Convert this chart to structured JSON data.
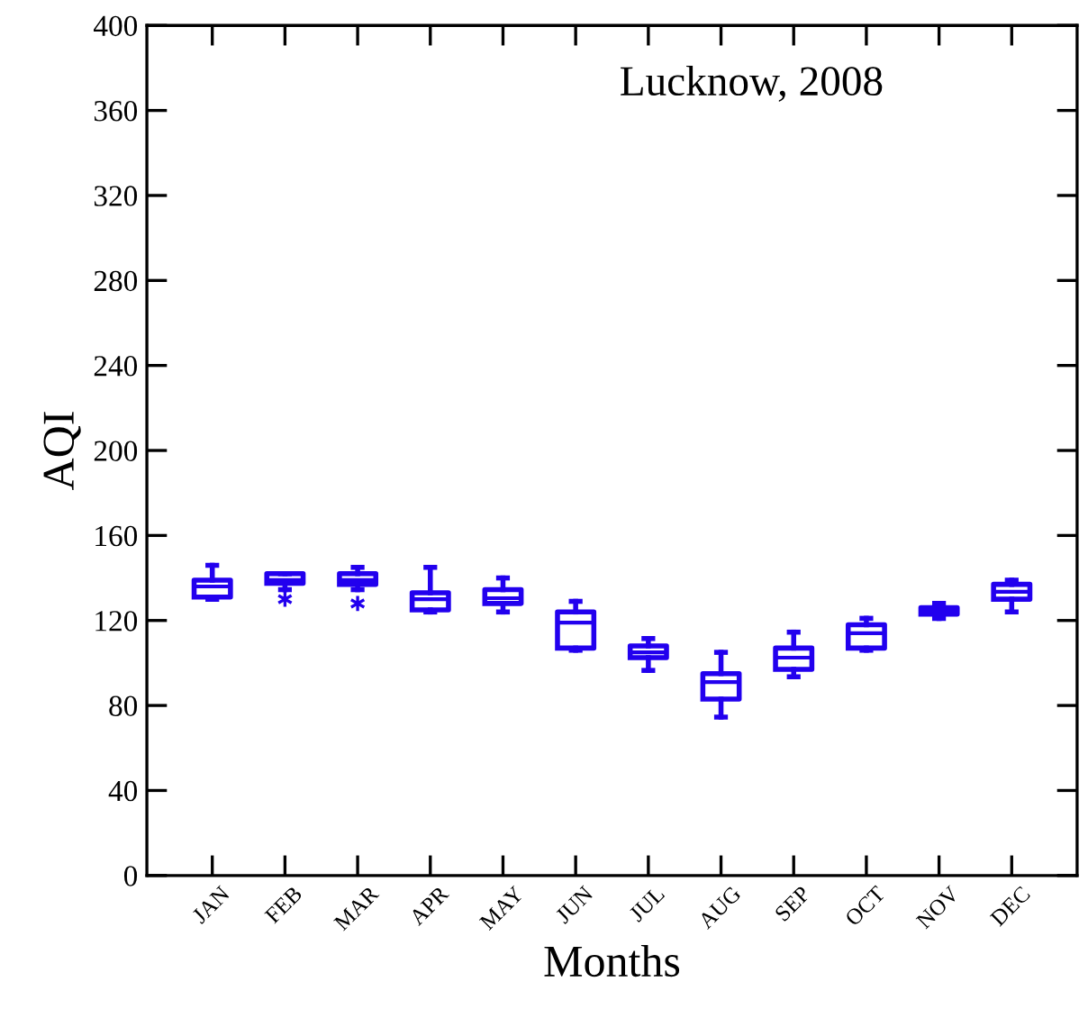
{
  "chart_data": {
    "type": "box",
    "title": "Lucknow, 2008",
    "xlabel": "Months",
    "ylabel": "AQI",
    "categories": [
      "JAN",
      "FEB",
      "MAR",
      "APR",
      "MAY",
      "JUN",
      "JUL",
      "AUG",
      "SEP",
      "OCT",
      "NOV",
      "DEC"
    ],
    "color": "#2200ee",
    "boxes": [
      {
        "low": 130,
        "q1": 131,
        "median": 136,
        "q3": 139,
        "high": 146
      },
      {
        "low": 134.5,
        "q1": 137.5,
        "median": 139,
        "q3": 142,
        "high": 142,
        "outliers": [
          130
        ]
      },
      {
        "low": 134.5,
        "q1": 137,
        "median": 139,
        "q3": 142,
        "high": 145,
        "outliers": [
          128
        ]
      },
      {
        "low": 124,
        "q1": 125,
        "median": 130,
        "q3": 133,
        "high": 145
      },
      {
        "low": 124,
        "q1": 128,
        "median": 130.5,
        "q3": 134.5,
        "high": 140
      },
      {
        "low": 106,
        "q1": 107,
        "median": 119,
        "q3": 124,
        "high": 129
      },
      {
        "low": 96.5,
        "q1": 102.5,
        "median": 105,
        "q3": 108,
        "high": 111.5
      },
      {
        "low": 74.5,
        "q1": 83,
        "median": 91,
        "q3": 95,
        "high": 105
      },
      {
        "low": 93.5,
        "q1": 97,
        "median": 102.5,
        "q3": 107,
        "high": 114.5
      },
      {
        "low": 106,
        "q1": 107,
        "median": 114,
        "q3": 118,
        "high": 121
      },
      {
        "low": 121,
        "q1": 123,
        "median": 125,
        "q3": 126,
        "high": 128
      },
      {
        "low": 124,
        "q1": 130,
        "median": 133.5,
        "q3": 137,
        "high": 139
      }
    ],
    "ylim": [
      0,
      400
    ],
    "yticks": [
      0,
      40,
      80,
      120,
      160,
      200,
      240,
      280,
      320,
      360,
      400
    ],
    "grid": false
  }
}
